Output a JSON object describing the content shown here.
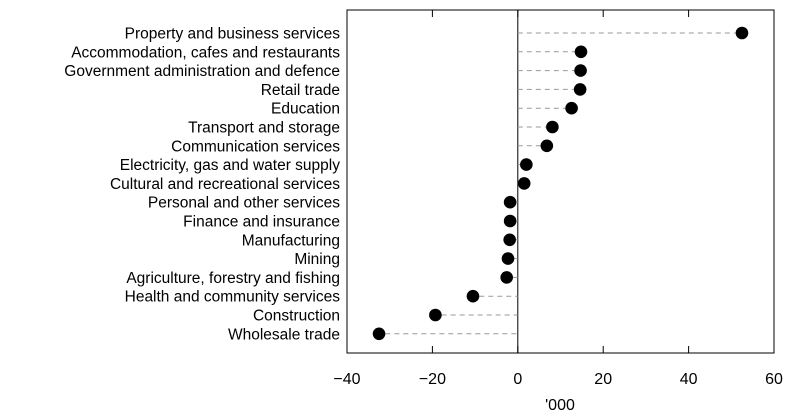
{
  "chart_data": {
    "type": "scatter",
    "title": "",
    "xlabel": "'000",
    "ylabel": "",
    "xlim": [
      -40,
      60
    ],
    "xticks": [
      "−40",
      "−20",
      "0",
      "20",
      "40",
      "60"
    ],
    "xtick_values": [
      -40,
      -20,
      0,
      20,
      40,
      60
    ],
    "grid": false,
    "style": "dot plot with dashed leader lines from zero",
    "categories": [
      "Property and business services",
      "Accommodation, cafes and restaurants",
      "Government administration and defence",
      "Retail trade",
      "Education",
      "Transport and storage",
      "Communication services",
      "Electricity, gas and water supply",
      "Cultural and recreational services",
      "Personal and other services",
      "Finance and insurance",
      "Manufacturing",
      "Mining",
      "Agriculture, forestry and fishing",
      "Health and community services",
      "Construction",
      "Wholesale trade"
    ],
    "values": [
      52.5,
      14.8,
      14.7,
      14.6,
      12.6,
      8.1,
      6.8,
      2.0,
      1.5,
      -1.8,
      -1.8,
      -1.9,
      -2.3,
      -2.6,
      -10.5,
      -19.3,
      -32.5
    ]
  },
  "colors": {
    "marker": "#000000",
    "leader_line": "#999999",
    "axis": "#000000"
  }
}
